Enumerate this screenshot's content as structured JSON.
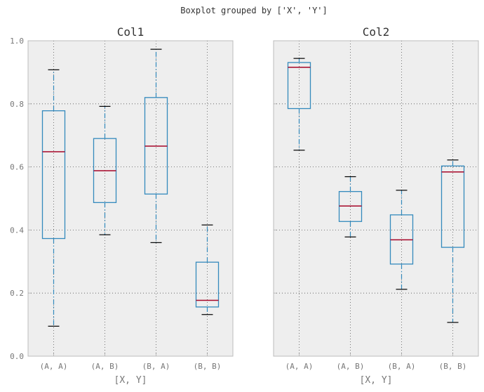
{
  "figure": {
    "suptitle": "Boxplot grouped by ['X', 'Y']"
  },
  "style": {
    "panel_bg": "#eeeeee",
    "panel_border": "#bcbcbc",
    "box_color": "#348abd",
    "median_color": "#a60628",
    "cap_color": "#000000",
    "grid_color": "#555555"
  },
  "chart_data": [
    {
      "type": "box",
      "title": "Col1",
      "xlabel": "[X, Y]",
      "ylabel": "",
      "ylim": [
        0.0,
        1.0
      ],
      "yticks": [
        "0.0",
        "0.2",
        "0.4",
        "0.6",
        "0.8",
        "1.0"
      ],
      "grid": true,
      "categories": [
        "(A, A)",
        "(A, B)",
        "(B, A)",
        "(B, B)"
      ],
      "boxes": [
        {
          "whislo": 0.095,
          "q1": 0.373,
          "med": 0.648,
          "q3": 0.778,
          "whishi": 0.908
        },
        {
          "whislo": 0.385,
          "q1": 0.487,
          "med": 0.588,
          "q3": 0.69,
          "whishi": 0.792
        },
        {
          "whislo": 0.36,
          "q1": 0.514,
          "med": 0.666,
          "q3": 0.82,
          "whishi": 0.973
        },
        {
          "whislo": 0.132,
          "q1": 0.156,
          "med": 0.177,
          "q3": 0.298,
          "whishi": 0.416
        }
      ]
    },
    {
      "type": "box",
      "title": "Col2",
      "xlabel": "[X, Y]",
      "ylabel": "",
      "ylim": [
        0.0,
        1.0
      ],
      "yticks": [
        "0.0",
        "0.2",
        "0.4",
        "0.6",
        "0.8",
        "1.0"
      ],
      "grid": true,
      "categories": [
        "(A, A)",
        "(A, B)",
        "(B, A)",
        "(B, B)"
      ],
      "boxes": [
        {
          "whislo": 0.653,
          "q1": 0.785,
          "med": 0.916,
          "q3": 0.931,
          "whishi": 0.944
        },
        {
          "whislo": 0.378,
          "q1": 0.427,
          "med": 0.476,
          "q3": 0.522,
          "whishi": 0.569
        },
        {
          "whislo": 0.212,
          "q1": 0.292,
          "med": 0.369,
          "q3": 0.448,
          "whishi": 0.526
        },
        {
          "whislo": 0.107,
          "q1": 0.345,
          "med": 0.584,
          "q3": 0.603,
          "whishi": 0.622
        }
      ]
    }
  ]
}
